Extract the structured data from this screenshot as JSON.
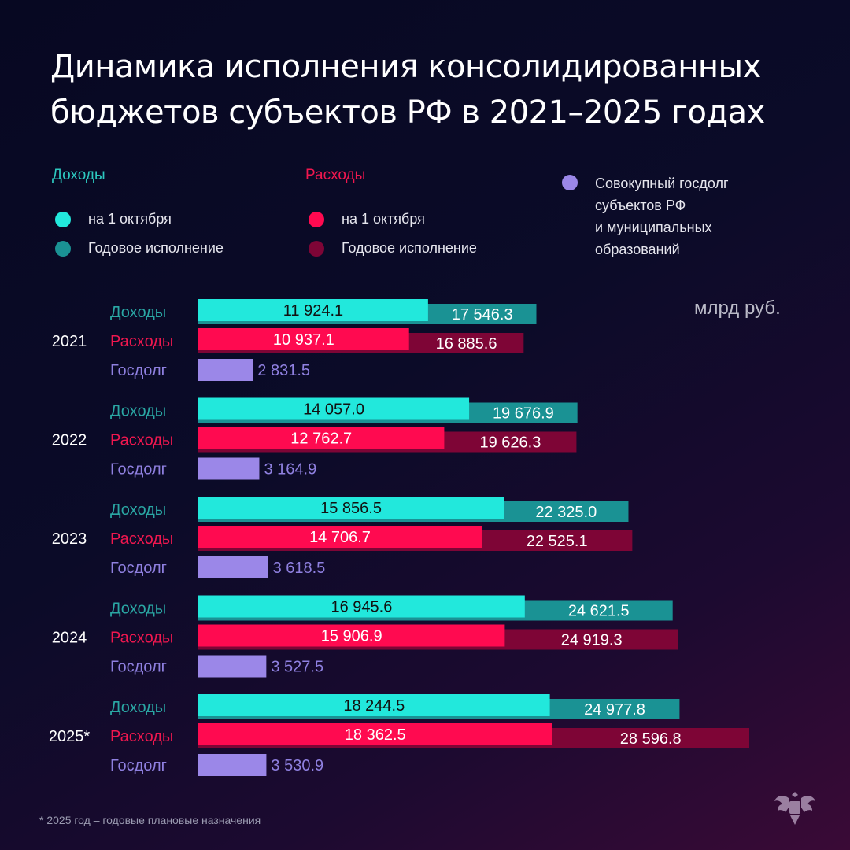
{
  "title_line1": "Динамика исполнения консолидированных",
  "title_line2": "бюджетов субъектов РФ в 2021–2025 годах",
  "legend": {
    "income_header": "Доходы",
    "expense_header": "Расходы",
    "oct": "на 1 октября",
    "annual": "Годовое исполнение",
    "debt_lines": [
      "Совокупный госдолг",
      "субъектов РФ",
      "и муниципальных",
      "образований"
    ]
  },
  "unit": "млрд руб.",
  "footnote": "* 2025 год – годовые плановые назначения",
  "colors": {
    "income_oct": "#22e8dc",
    "income_annual": "#1a9294",
    "expense_oct": "#ff0a50",
    "expense_annual": "#7e0536",
    "debt": "#9b87e8",
    "income_label": "#2aa7a4",
    "expense_label": "#f0174f",
    "debt_label": "#8f80e0"
  },
  "chart_data": {
    "type": "bar",
    "orientation": "horizontal",
    "categories": [
      "2021",
      "2022",
      "2023",
      "2024",
      "2025*"
    ],
    "row_labels": [
      "Доходы",
      "Расходы",
      "Госдолг"
    ],
    "series": [
      {
        "name": "Доходы на 1 октября",
        "values": [
          11924.1,
          14057.0,
          15856.5,
          16945.6,
          18244.5
        ]
      },
      {
        "name": "Доходы Годовое исполнение",
        "values": [
          17546.3,
          19676.9,
          22325.0,
          24621.5,
          24977.8
        ]
      },
      {
        "name": "Расходы на 1 октября",
        "values": [
          10937.1,
          12762.7,
          14706.7,
          15906.9,
          18362.5
        ]
      },
      {
        "name": "Расходы Годовое исполнение",
        "values": [
          16885.6,
          19626.3,
          22525.1,
          24919.3,
          28596.8
        ]
      },
      {
        "name": "Совокупный госдолг субъектов РФ и муниципальных образований",
        "values": [
          2831.5,
          3164.9,
          3618.5,
          3527.5,
          3530.9
        ]
      }
    ],
    "labels": {
      "income_oct": [
        "11 924.1",
        "14 057.0",
        "15 856.5",
        "16 945.6",
        "18 244.5"
      ],
      "income_annual": [
        "17 546.3",
        "19 676.9",
        "22 325.0",
        "24 621.5",
        "24 977.8"
      ],
      "expense_oct": [
        "10 937.1",
        "12 762.7",
        "14 706.7",
        "15 906.9",
        "18 362.5"
      ],
      "expense_annual": [
        "16 885.6",
        "19 626.3",
        "22 525.1",
        "24 919.3",
        "28 596.8"
      ],
      "debt": [
        "2 831.5",
        "3 164.9",
        "3 618.5",
        "3 527.5",
        "3 530.9"
      ]
    },
    "grid": false
  },
  "emblem": "coat-of-arms"
}
